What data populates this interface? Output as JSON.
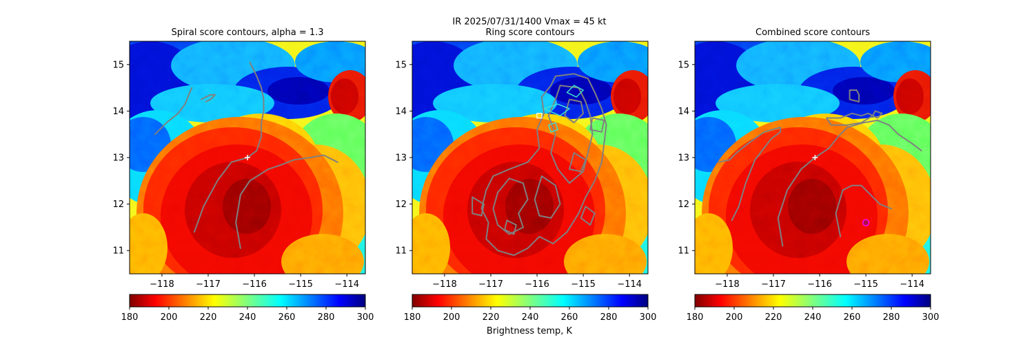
{
  "figure": {
    "suptitle": "IR  2025/07/31/1400    Vmax = 45 kt",
    "colorbar_label": "Brightness temp, K"
  },
  "chart_data": [
    {
      "type": "heatmap",
      "title": "Spiral score contours, alpha =  1.3",
      "xlim": [
        -118.7,
        -113.6
      ],
      "ylim": [
        10.5,
        15.5
      ],
      "xticks": [
        -118,
        -117,
        -116,
        -115,
        -114
      ],
      "xtick_labels": [
        "−118",
        "−117",
        "−116",
        "−115",
        "−114"
      ],
      "yticks": [
        11,
        12,
        13,
        14,
        15
      ],
      "ytick_labels": [
        "11",
        "12",
        "13",
        "14",
        "15"
      ],
      "colorbar": {
        "min": 180,
        "max": 300,
        "ticks": [
          180,
          200,
          220,
          240,
          260,
          280,
          300
        ],
        "cmap": "jet_r",
        "label": ""
      },
      "markers": [
        {
          "kind": "plus",
          "lon": -116.15,
          "lat": 13.0,
          "color": "#ffffff"
        }
      ],
      "contour_color": "#808080",
      "contours": [
        [
          [
            -116.3,
            11.05
          ],
          [
            -116.4,
            11.6
          ],
          [
            -116.3,
            12.2
          ],
          [
            -116.1,
            12.5
          ],
          [
            -115.7,
            12.75
          ],
          [
            -115.4,
            12.85
          ],
          [
            -115.15,
            12.95
          ],
          [
            -114.8,
            13.0
          ],
          [
            -114.5,
            13.05
          ],
          [
            -114.3,
            12.95
          ],
          [
            -114.2,
            12.9
          ]
        ],
        [
          [
            -117.3,
            11.4
          ],
          [
            -117.1,
            11.95
          ],
          [
            -116.8,
            12.5
          ],
          [
            -116.5,
            12.9
          ],
          [
            -116.15,
            13.0
          ],
          [
            -115.95,
            13.15
          ],
          [
            -115.85,
            13.45
          ],
          [
            -115.85,
            13.75
          ],
          [
            -115.8,
            14.0
          ],
          [
            -115.8,
            14.25
          ],
          [
            -115.85,
            14.5
          ],
          [
            -115.95,
            14.75
          ],
          [
            -116.05,
            14.95
          ],
          [
            -116.1,
            15.05
          ]
        ],
        [
          [
            -118.15,
            13.5
          ],
          [
            -117.9,
            13.75
          ],
          [
            -117.65,
            13.95
          ],
          [
            -117.5,
            14.15
          ],
          [
            -117.4,
            14.4
          ],
          [
            -117.35,
            14.5
          ]
        ],
        [
          [
            -117.15,
            14.25
          ],
          [
            -117.05,
            14.3
          ],
          [
            -116.95,
            14.35
          ],
          [
            -116.85,
            14.35
          ],
          [
            -116.95,
            14.25
          ],
          [
            -117.05,
            14.2
          ]
        ]
      ]
    },
    {
      "type": "heatmap",
      "title": "Ring score contours",
      "xlim": [
        -118.7,
        -113.6
      ],
      "ylim": [
        10.5,
        15.5
      ],
      "xticks": [
        -118,
        -117,
        -116,
        -115,
        -114
      ],
      "xtick_labels": [
        "−118",
        "−117",
        "−116",
        "−115",
        "−114"
      ],
      "yticks": [
        11,
        12,
        13,
        14,
        15
      ],
      "ytick_labels": [
        "11",
        "12",
        "13",
        "14",
        "15"
      ],
      "colorbar": {
        "min": 180,
        "max": 300,
        "ticks": [
          180,
          200,
          220,
          240,
          260,
          280,
          300
        ],
        "cmap": "jet_r",
        "label": "Brightness temp, K"
      },
      "markers": [
        {
          "kind": "square",
          "lon": -115.95,
          "lat": 13.9,
          "color": "#ffffff"
        }
      ],
      "contour_color": "#808080",
      "contours": [
        [
          [
            -115.6,
            14.75
          ],
          [
            -115.2,
            14.8
          ],
          [
            -114.9,
            14.7
          ],
          [
            -114.75,
            14.4
          ],
          [
            -114.6,
            14.05
          ],
          [
            -114.5,
            13.7
          ],
          [
            -114.55,
            13.3
          ],
          [
            -114.6,
            12.9
          ],
          [
            -114.75,
            12.5
          ],
          [
            -114.95,
            12.15
          ],
          [
            -115.1,
            11.8
          ],
          [
            -115.35,
            11.4
          ],
          [
            -115.65,
            11.15
          ],
          [
            -115.95,
            11.3
          ],
          [
            -116.2,
            11.05
          ],
          [
            -116.5,
            10.9
          ],
          [
            -116.85,
            11.0
          ],
          [
            -117.1,
            11.25
          ],
          [
            -117.05,
            11.6
          ],
          [
            -117.2,
            11.9
          ],
          [
            -117.1,
            12.3
          ],
          [
            -116.95,
            12.6
          ],
          [
            -116.6,
            12.75
          ],
          [
            -116.2,
            12.9
          ],
          [
            -115.95,
            13.2
          ],
          [
            -116.0,
            13.6
          ],
          [
            -115.85,
            13.95
          ],
          [
            -115.9,
            14.3
          ],
          [
            -115.7,
            14.55
          ],
          [
            -115.6,
            14.75
          ]
        ],
        [
          [
            -115.5,
            14.55
          ],
          [
            -115.1,
            14.5
          ],
          [
            -114.95,
            14.2
          ],
          [
            -114.85,
            13.9
          ],
          [
            -114.8,
            13.5
          ],
          [
            -114.9,
            13.1
          ],
          [
            -115.0,
            12.7
          ],
          [
            -115.3,
            12.45
          ],
          [
            -115.55,
            12.75
          ],
          [
            -115.7,
            13.1
          ],
          [
            -115.6,
            13.5
          ],
          [
            -115.75,
            13.9
          ],
          [
            -115.6,
            14.25
          ],
          [
            -115.5,
            14.55
          ]
        ],
        [
          [
            -116.6,
            12.55
          ],
          [
            -116.3,
            12.45
          ],
          [
            -116.2,
            12.1
          ],
          [
            -116.4,
            11.8
          ],
          [
            -116.3,
            11.5
          ],
          [
            -116.6,
            11.35
          ],
          [
            -116.85,
            11.55
          ],
          [
            -116.95,
            11.9
          ],
          [
            -116.85,
            12.25
          ],
          [
            -116.6,
            12.55
          ]
        ],
        [
          [
            -115.9,
            12.6
          ],
          [
            -115.6,
            12.4
          ],
          [
            -115.5,
            12.0
          ],
          [
            -115.7,
            11.7
          ],
          [
            -115.95,
            11.75
          ],
          [
            -116.05,
            12.1
          ],
          [
            -115.9,
            12.6
          ]
        ],
        [
          [
            -115.3,
            14.25
          ],
          [
            -115.05,
            14.2
          ],
          [
            -115.0,
            13.95
          ],
          [
            -115.2,
            13.75
          ],
          [
            -115.4,
            13.9
          ],
          [
            -115.3,
            14.25
          ]
        ],
        [
          [
            -117.4,
            12.15
          ],
          [
            -117.15,
            12.0
          ],
          [
            -117.2,
            11.75
          ],
          [
            -117.4,
            11.8
          ],
          [
            -117.4,
            12.15
          ]
        ],
        [
          [
            -115.2,
            13.1
          ],
          [
            -114.95,
            12.95
          ],
          [
            -115.05,
            12.7
          ],
          [
            -115.3,
            12.75
          ],
          [
            -115.2,
            13.1
          ]
        ],
        [
          [
            -116.65,
            11.65
          ],
          [
            -116.45,
            11.55
          ],
          [
            -116.5,
            11.35
          ],
          [
            -116.7,
            11.45
          ],
          [
            -116.65,
            11.65
          ]
        ],
        [
          [
            -114.95,
            11.95
          ],
          [
            -114.75,
            11.8
          ],
          [
            -114.85,
            11.55
          ],
          [
            -115.05,
            11.7
          ],
          [
            -114.95,
            11.95
          ]
        ],
        [
          [
            -114.8,
            13.85
          ],
          [
            -114.55,
            13.8
          ],
          [
            -114.6,
            13.55
          ],
          [
            -114.85,
            13.6
          ],
          [
            -114.8,
            13.85
          ]
        ]
      ],
      "contours_cyan": [
        [
          [
            -115.85,
            14.05
          ],
          [
            -115.55,
            14.15
          ],
          [
            -115.3,
            14.05
          ],
          [
            -115.5,
            13.9
          ],
          [
            -115.85,
            14.05
          ]
        ],
        [
          [
            -115.2,
            14.55
          ],
          [
            -115.0,
            14.45
          ],
          [
            -115.15,
            14.3
          ],
          [
            -115.35,
            14.4
          ],
          [
            -115.2,
            14.55
          ]
        ],
        [
          [
            -115.75,
            13.7
          ],
          [
            -115.6,
            13.75
          ],
          [
            -115.55,
            13.6
          ],
          [
            -115.7,
            13.55
          ],
          [
            -115.75,
            13.7
          ]
        ]
      ]
    },
    {
      "type": "heatmap",
      "title": "Combined score contours",
      "xlim": [
        -118.7,
        -113.6
      ],
      "ylim": [
        10.5,
        15.5
      ],
      "xticks": [
        -118,
        -117,
        -116,
        -115,
        -114
      ],
      "xtick_labels": [
        "−118",
        "−117",
        "−116",
        "−115",
        "−114"
      ],
      "yticks": [
        11,
        12,
        13,
        14,
        15
      ],
      "ytick_labels": [
        "11",
        "12",
        "13",
        "14",
        "15"
      ],
      "colorbar": {
        "min": 180,
        "max": 300,
        "ticks": [
          180,
          200,
          220,
          240,
          260,
          280,
          300
        ],
        "cmap": "jet_r",
        "label": ""
      },
      "markers": [
        {
          "kind": "plus",
          "lon": -116.1,
          "lat": 13.0,
          "color": "#ffffff"
        },
        {
          "kind": "circle",
          "lon": -115.0,
          "lat": 11.6,
          "color": "#ff00ff"
        }
      ],
      "contour_color": "#808080",
      "contours": [
        [
          [
            -118.2,
            12.9
          ],
          [
            -117.95,
            12.95
          ],
          [
            -117.8,
            13.1
          ],
          [
            -117.55,
            13.3
          ],
          [
            -117.2,
            13.55
          ],
          [
            -116.85,
            13.65
          ],
          [
            -116.85,
            13.55
          ],
          [
            -117.05,
            13.4
          ],
          [
            -117.4,
            12.95
          ],
          [
            -117.6,
            12.45
          ],
          [
            -117.75,
            11.95
          ],
          [
            -117.9,
            11.65
          ]
        ],
        [
          [
            -116.8,
            11.1
          ],
          [
            -116.9,
            11.7
          ],
          [
            -116.7,
            12.3
          ],
          [
            -116.4,
            12.75
          ],
          [
            -116.1,
            13.0
          ],
          [
            -115.8,
            13.2
          ],
          [
            -115.6,
            13.45
          ],
          [
            -115.4,
            13.65
          ],
          [
            -115.05,
            13.75
          ],
          [
            -114.75,
            13.8
          ],
          [
            -114.5,
            13.7
          ],
          [
            -114.3,
            13.5
          ],
          [
            -114.0,
            13.3
          ],
          [
            -113.8,
            13.15
          ]
        ],
        [
          [
            -115.55,
            11.3
          ],
          [
            -115.65,
            11.8
          ],
          [
            -115.5,
            12.3
          ],
          [
            -115.3,
            12.4
          ],
          [
            -115.1,
            12.4
          ],
          [
            -114.9,
            12.2
          ],
          [
            -114.7,
            12.0
          ],
          [
            -114.45,
            11.9
          ]
        ],
        [
          [
            -115.85,
            13.85
          ],
          [
            -115.55,
            13.85
          ],
          [
            -115.3,
            13.95
          ],
          [
            -115.1,
            13.9
          ],
          [
            -114.95,
            13.95
          ],
          [
            -114.85,
            13.9
          ],
          [
            -115.1,
            13.75
          ],
          [
            -115.4,
            13.7
          ],
          [
            -115.75,
            13.7
          ],
          [
            -115.85,
            13.85
          ]
        ],
        [
          [
            -115.35,
            14.25
          ],
          [
            -115.15,
            14.2
          ],
          [
            -115.15,
            14.35
          ],
          [
            -115.2,
            14.45
          ],
          [
            -115.35,
            14.45
          ],
          [
            -115.35,
            14.25
          ]
        ],
        [
          [
            -114.8,
            14.0
          ],
          [
            -114.65,
            13.95
          ],
          [
            -114.75,
            13.85
          ],
          [
            -114.85,
            13.9
          ],
          [
            -114.8,
            14.0
          ]
        ]
      ]
    }
  ]
}
